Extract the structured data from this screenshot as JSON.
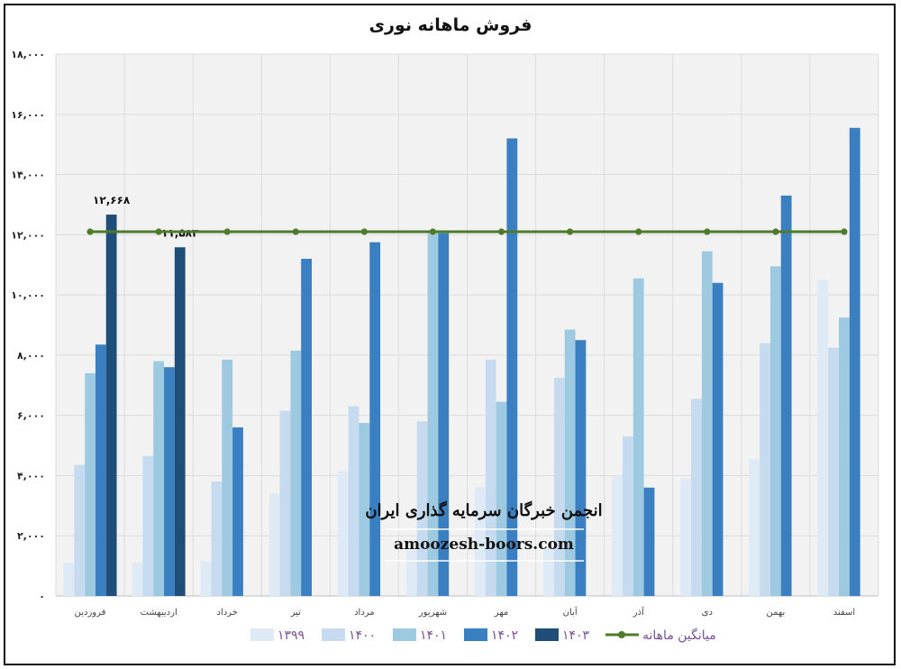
{
  "chart_data": {
    "type": "bar",
    "title": "فروش ماهانه نوری",
    "categories": [
      "فروردین",
      "اردیبهشت",
      "خرداد",
      "تیر",
      "مرداد",
      "شهریور",
      "مهر",
      "آبان",
      "آذر",
      "دی",
      "بهمن",
      "اسفند"
    ],
    "series": [
      {
        "name": "۱۳۹۹",
        "color": "#deebf7",
        "values": [
          1100,
          1100,
          1150,
          3400,
          4150,
          1500,
          3600,
          1600,
          4000,
          3900,
          4550,
          10500
        ]
      },
      {
        "name": "۱۴۰۰",
        "color": "#c6dbef",
        "values": [
          4350,
          4650,
          3800,
          6150,
          6300,
          5800,
          7850,
          7250,
          5300,
          6550,
          8400,
          8250
        ]
      },
      {
        "name": "۱۴۰۱",
        "color": "#9ecae1",
        "values": [
          7400,
          7800,
          7850,
          8150,
          5750,
          12050,
          6450,
          8850,
          10550,
          11450,
          10950,
          9250
        ]
      },
      {
        "name": "۱۴۰۲",
        "color": "#3a7fc1",
        "values": [
          8350,
          7600,
          5600,
          11200,
          11750,
          12050,
          15200,
          8500,
          3600,
          10400,
          13300,
          15550
        ]
      },
      {
        "name": "۱۴۰۳",
        "color": "#1f4e79",
        "values": [
          12668,
          11583,
          null,
          null,
          null,
          null,
          null,
          null,
          null,
          null,
          null,
          null
        ]
      }
    ],
    "average": {
      "name": "میانگین ماهانه",
      "color": "#4e7a2a",
      "value": 12100
    },
    "data_labels": [
      {
        "series": "۱۴۰۳",
        "category": "فروردین",
        "text": "۱۲,۶۶۸"
      },
      {
        "series": "۱۴۰۳",
        "category": "اردیبهشت",
        "text": "۱۱,۵۸۳"
      }
    ],
    "ylim": [
      0,
      18000
    ],
    "yticks": [
      {
        "value": 0,
        "label": "۰"
      },
      {
        "value": 2000,
        "label": "۲,۰۰۰"
      },
      {
        "value": 4000,
        "label": "۴,۰۰۰"
      },
      {
        "value": 6000,
        "label": "۶,۰۰۰"
      },
      {
        "value": 8000,
        "label": "۸,۰۰۰"
      },
      {
        "value": 10000,
        "label": "۱۰,۰۰۰"
      },
      {
        "value": 12000,
        "label": "۱۲,۰۰۰"
      },
      {
        "value": 14000,
        "label": "۱۴,۰۰۰"
      },
      {
        "value": 16000,
        "label": "۱۶,۰۰۰"
      },
      {
        "value": 18000,
        "label": "۱۸,۰۰۰"
      }
    ],
    "xlabel": "",
    "ylabel": "",
    "grid": true,
    "legend_position": "bottom",
    "plot_background": "#f2f2f2"
  },
  "watermark": {
    "line1": "انجمن خبرگان سرمایه گذاری ایران",
    "line2": "amoozesh-boors.com"
  }
}
